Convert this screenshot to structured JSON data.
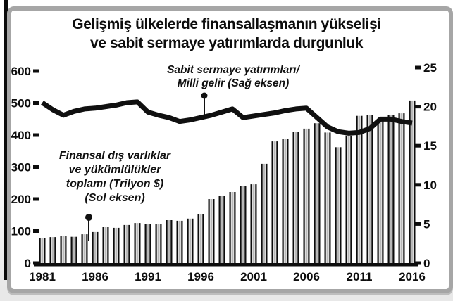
{
  "page": {
    "title_line1": "Gelişmiş ülkelerde finansallaşmanın yükselişi",
    "title_line2": "ve sabit sermaye yatırımlarda durgunluk"
  },
  "annotations": {
    "right_line1": "Sabit sermaye yatırımları/",
    "right_line2": "Milli gelir (Sağ eksen)",
    "left_line1": "Finansal dış varlıklar",
    "left_line2": "ve yükümlülükler",
    "left_line3": "toplamı (Trilyon $)",
    "left_line4": "(Sol eksen)"
  },
  "chart_data": {
    "type": "bar",
    "subtype": "bar-and-line-dual-axis",
    "title": "Gelişmiş ülkelerde finansallaşmanın yükselişi ve sabit sermaye yatırımlarda durgunluk",
    "x": [
      1981,
      1982,
      1983,
      1984,
      1985,
      1986,
      1987,
      1988,
      1989,
      1990,
      1991,
      1992,
      1993,
      1994,
      1995,
      1996,
      1997,
      1998,
      1999,
      2000,
      2001,
      2002,
      2003,
      2004,
      2005,
      2006,
      2007,
      2008,
      2009,
      2010,
      2011,
      2012,
      2013,
      2014,
      2015,
      2016
    ],
    "series": [
      {
        "name": "Finansal dış varlıklar ve yükümlülükler toplamı (Trilyon $) (Sol eksen)",
        "type": "bar",
        "axis": "left",
        "values": [
          78,
          81,
          84,
          82,
          90,
          97,
          112,
          110,
          119,
          125,
          121,
          123,
          134,
          132,
          139,
          152,
          200,
          211,
          222,
          240,
          246,
          310,
          380,
          387,
          411,
          420,
          437,
          408,
          362,
          398,
          460,
          462,
          450,
          462,
          468,
          508
        ]
      },
      {
        "name": "Sabit sermaye yatırımları/Milli gelir (Sağ eksen)",
        "type": "line",
        "axis": "right",
        "values": [
          20.5,
          19.6,
          18.9,
          19.4,
          19.7,
          19.8,
          20.0,
          20.2,
          20.5,
          20.6,
          19.3,
          18.9,
          18.6,
          18.1,
          18.3,
          18.6,
          18.9,
          19.3,
          19.7,
          18.6,
          18.8,
          19.0,
          19.2,
          19.5,
          19.7,
          19.8,
          18.6,
          17.4,
          16.8,
          16.6,
          16.7,
          17.2,
          18.4,
          18.4,
          18.1,
          17.9
        ]
      }
    ],
    "left_axis": {
      "ticks": [
        600,
        500,
        400,
        300,
        200,
        100,
        0
      ],
      "range": [
        0,
        600
      ]
    },
    "right_axis": {
      "ticks": [
        25,
        20,
        15,
        10,
        5,
        0
      ],
      "range": [
        0,
        25
      ]
    },
    "x_axis": {
      "tick_labels": [
        "1981",
        "1986",
        "1991",
        "1996",
        "2001",
        "2006",
        "2011",
        "2016"
      ],
      "tick_step": 5
    },
    "legend_position": "annotations-on-plot",
    "grid": false,
    "colors": {
      "bar_edge": "#0d0d0d",
      "bar_mid": "#999999",
      "bar_highlight": "#f7f7f7",
      "line": "#101010",
      "frame": "#a6a6a6"
    }
  }
}
